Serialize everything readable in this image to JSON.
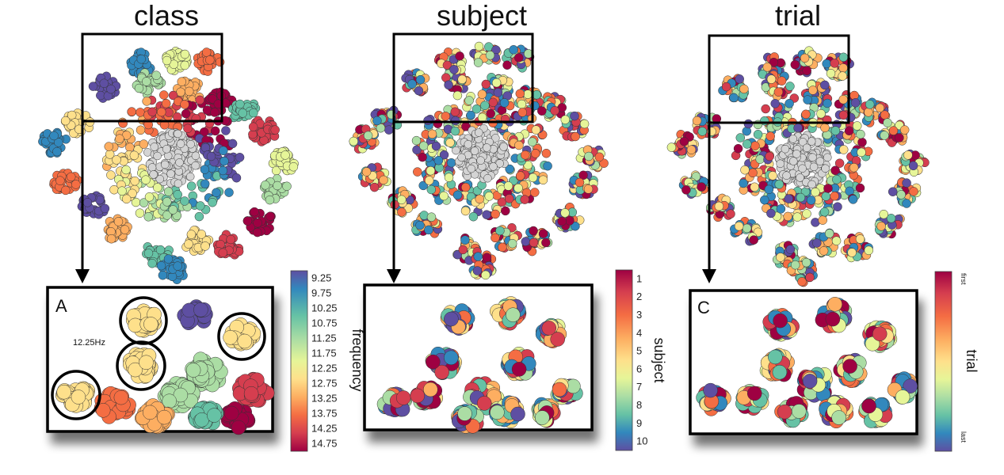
{
  "figure": {
    "panels": [
      {
        "title": "class",
        "inset_letter": "A",
        "annotation": "12.25Hz",
        "colorbar": {
          "label": "frequency",
          "ticks": [
            "9.25",
            "9.75",
            "10.25",
            "10.75",
            "11.25",
            "11.75",
            "12.25",
            "12.75",
            "13.25",
            "13.75",
            "14.25",
            "14.75"
          ]
        }
      },
      {
        "title": "subject",
        "inset_letter": "",
        "colorbar": {
          "label": "subject",
          "ticks": [
            "1",
            "2",
            "3",
            "4",
            "5",
            "6",
            "7",
            "8",
            "9",
            "10"
          ]
        }
      },
      {
        "title": "trial",
        "inset_letter": "C",
        "colorbar": {
          "label": "trial",
          "ticks": [
            "first",
            "last"
          ]
        }
      }
    ],
    "palette": [
      "#5e4fa2",
      "#3288bd",
      "#66c2a5",
      "#abdda4",
      "#e6f598",
      "#fee08b",
      "#fdae61",
      "#f46d43",
      "#d53e4f",
      "#9e0142"
    ],
    "center_color": "#d4d4d4"
  }
}
